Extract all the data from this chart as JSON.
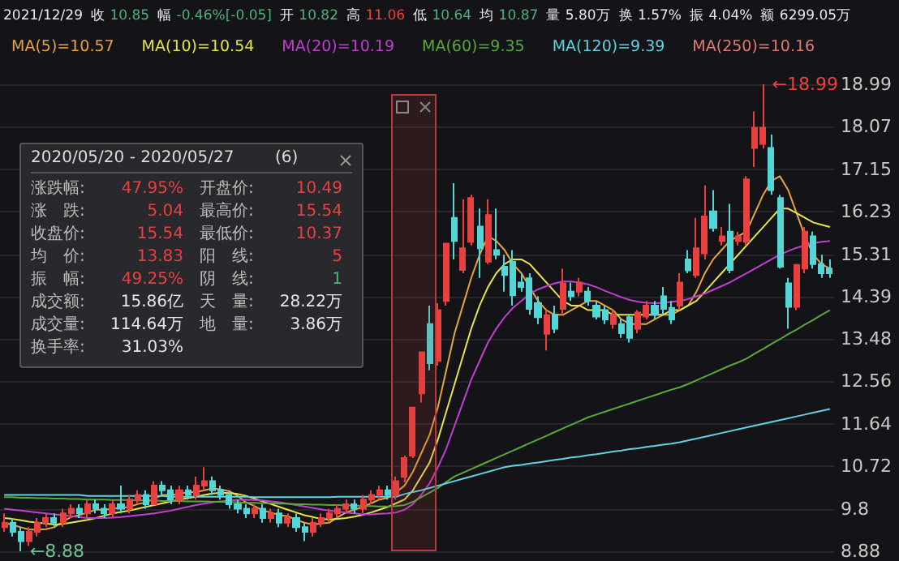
{
  "chart_data": {
    "type": "candlestick",
    "categories": [
      null,
      null,
      null,
      null,
      null,
      null,
      null,
      null,
      null,
      null,
      null,
      null,
      null,
      null,
      null,
      null,
      null,
      null,
      null,
      null,
      null,
      null,
      null,
      null,
      null,
      null,
      null,
      null,
      null,
      null,
      null,
      null,
      null,
      null,
      null,
      null,
      null,
      null,
      null,
      null,
      null,
      null,
      null,
      null,
      null,
      null,
      null,
      null,
      null,
      null,
      null,
      null,
      null,
      null,
      null,
      null,
      null,
      null,
      null,
      null,
      null,
      null,
      null,
      null,
      null,
      null,
      null,
      null,
      null,
      null,
      null,
      null,
      null,
      null,
      null,
      null,
      null,
      null,
      null,
      null,
      null,
      null,
      null,
      null,
      null,
      null,
      null,
      null,
      null,
      null,
      null,
      null,
      null,
      null,
      null,
      null,
      null,
      null,
      null,
      null
    ],
    "ohlc": [
      [
        9.4,
        9.7,
        9.3,
        9.5
      ],
      [
        9.5,
        9.6,
        9.2,
        9.3
      ],
      [
        9.3,
        9.4,
        8.88,
        9.1
      ],
      [
        9.1,
        9.4,
        9.0,
        9.3
      ],
      [
        9.3,
        9.6,
        9.2,
        9.5
      ],
      [
        9.5,
        9.7,
        9.4,
        9.6
      ],
      [
        9.6,
        9.7,
        9.4,
        9.5
      ],
      [
        9.5,
        9.8,
        9.4,
        9.7
      ],
      [
        9.7,
        9.9,
        9.6,
        9.8
      ],
      [
        9.8,
        9.9,
        9.6,
        9.7
      ],
      [
        9.7,
        10.0,
        9.6,
        9.9
      ],
      [
        9.9,
        10.0,
        9.7,
        9.8
      ],
      [
        9.8,
        9.9,
        9.6,
        9.7
      ],
      [
        9.7,
        10.0,
        9.6,
        9.9
      ],
      [
        9.9,
        10.3,
        9.7,
        9.8
      ],
      [
        9.8,
        10.1,
        9.7,
        10.0
      ],
      [
        10.0,
        10.2,
        9.9,
        10.1
      ],
      [
        10.1,
        10.2,
        9.8,
        9.9
      ],
      [
        9.9,
        10.4,
        9.9,
        10.3
      ],
      [
        10.3,
        10.4,
        10.1,
        10.2
      ],
      [
        10.2,
        10.3,
        9.9,
        10.0
      ],
      [
        10.0,
        10.3,
        9.9,
        10.2
      ],
      [
        10.2,
        10.3,
        10.0,
        10.1
      ],
      [
        10.1,
        10.5,
        10.0,
        10.3
      ],
      [
        10.3,
        10.7,
        10.2,
        10.4
      ],
      [
        10.4,
        10.5,
        10.1,
        10.2
      ],
      [
        10.2,
        10.3,
        10.0,
        10.1
      ],
      [
        10.1,
        10.2,
        9.8,
        9.9
      ],
      [
        9.9,
        10.0,
        9.7,
        9.8
      ],
      [
        9.8,
        9.9,
        9.6,
        9.7
      ],
      [
        9.7,
        9.9,
        9.6,
        9.8
      ],
      [
        9.8,
        9.9,
        9.5,
        9.6
      ],
      [
        9.6,
        9.8,
        9.5,
        9.7
      ],
      [
        9.7,
        9.8,
        9.4,
        9.5
      ],
      [
        9.5,
        9.7,
        9.4,
        9.6
      ],
      [
        9.6,
        9.7,
        9.3,
        9.4
      ],
      [
        9.4,
        9.5,
        9.1,
        9.3
      ],
      [
        9.3,
        9.6,
        9.2,
        9.5
      ],
      [
        9.5,
        9.7,
        9.4,
        9.6
      ],
      [
        9.6,
        9.8,
        9.5,
        9.7
      ],
      [
        9.7,
        9.9,
        9.6,
        9.8
      ],
      [
        9.8,
        10.0,
        9.7,
        9.9
      ],
      [
        9.9,
        10.0,
        9.7,
        9.8
      ],
      [
        9.8,
        10.1,
        9.7,
        10.0
      ],
      [
        10.0,
        10.2,
        9.9,
        10.1
      ],
      [
        10.1,
        10.3,
        10.0,
        10.2
      ],
      [
        10.2,
        10.3,
        10.0,
        10.1
      ],
      [
        10.1,
        10.5,
        10.0,
        10.4
      ],
      [
        10.49,
        10.95,
        10.37,
        10.9
      ],
      [
        10.95,
        11.99,
        10.9,
        11.99
      ],
      [
        12.3,
        13.19,
        12.1,
        13.19
      ],
      [
        13.8,
        14.2,
        12.8,
        12.95
      ],
      [
        13.0,
        14.25,
        12.9,
        14.1
      ],
      [
        14.3,
        15.54,
        14.2,
        15.54
      ],
      [
        16.1,
        16.85,
        15.2,
        15.6
      ],
      [
        14.97,
        16.5,
        14.9,
        15.44
      ],
      [
        15.58,
        16.6,
        15.5,
        16.53
      ],
      [
        15.91,
        16.3,
        14.8,
        15.44
      ],
      [
        15.15,
        16.5,
        15.1,
        16.16
      ],
      [
        15.4,
        16.3,
        15.2,
        15.3
      ],
      [
        15.04,
        15.3,
        14.5,
        14.86
      ],
      [
        15.15,
        15.4,
        14.2,
        14.42
      ],
      [
        14.7,
        14.9,
        14.5,
        14.6
      ],
      [
        14.79,
        14.9,
        14.0,
        14.13
      ],
      [
        14.25,
        14.4,
        13.8,
        13.95
      ],
      [
        13.59,
        14.1,
        13.23,
        13.99
      ],
      [
        14.0,
        14.2,
        13.6,
        13.7
      ],
      [
        14.13,
        15.0,
        14.0,
        14.68
      ],
      [
        14.5,
        14.7,
        14.3,
        14.4
      ],
      [
        14.5,
        14.8,
        14.4,
        14.7
      ],
      [
        14.5,
        14.6,
        14.2,
        14.3
      ],
      [
        14.2,
        14.3,
        13.9,
        13.96
      ],
      [
        14.1,
        14.2,
        13.8,
        13.9
      ],
      [
        13.8,
        14.1,
        13.7,
        14.0
      ],
      [
        13.8,
        13.9,
        13.5,
        13.6
      ],
      [
        13.95,
        14.0,
        13.4,
        13.5
      ],
      [
        13.7,
        14.1,
        13.6,
        14.05
      ],
      [
        13.96,
        14.3,
        13.9,
        14.2
      ],
      [
        14.2,
        14.3,
        13.9,
        14.0
      ],
      [
        14.4,
        14.6,
        14.0,
        14.13
      ],
      [
        14.15,
        14.3,
        13.8,
        13.9
      ],
      [
        14.2,
        14.9,
        14.1,
        14.7
      ],
      [
        15.2,
        15.4,
        14.9,
        14.96
      ],
      [
        14.86,
        16.1,
        14.8,
        15.44
      ],
      [
        15.33,
        16.8,
        15.2,
        16.13
      ],
      [
        16.24,
        16.7,
        15.8,
        15.88
      ],
      [
        15.6,
        15.9,
        15.5,
        15.7
      ],
      [
        15.8,
        16.4,
        14.9,
        14.97
      ],
      [
        15.6,
        15.8,
        15.5,
        15.7
      ],
      [
        15.58,
        17.0,
        15.5,
        16.93
      ],
      [
        17.61,
        18.4,
        17.2,
        18.05
      ],
      [
        17.7,
        18.99,
        17.6,
        18.05
      ],
      [
        17.61,
        17.9,
        16.6,
        16.7
      ],
      [
        16.53,
        16.6,
        15.0,
        15.04
      ],
      [
        14.68,
        14.8,
        13.7,
        14.17
      ],
      [
        14.17,
        15.1,
        14.1,
        15.08
      ],
      [
        15.0,
        15.9,
        14.9,
        15.8
      ],
      [
        15.7,
        15.8,
        15.0,
        15.1
      ],
      [
        15.1,
        15.3,
        14.8,
        14.9
      ],
      [
        15.0,
        15.2,
        14.8,
        14.9
      ]
    ],
    "series": [
      {
        "type": "line",
        "name": "MA(5)=10.57",
        "color": "#e8a33d",
        "values": [
          9.5,
          9.45,
          9.4,
          9.35,
          9.35,
          9.36,
          9.4,
          9.52,
          9.62,
          9.66,
          9.72,
          9.78,
          9.78,
          9.8,
          9.82,
          9.84,
          9.9,
          9.94,
          10.02,
          10.1,
          10.1,
          10.12,
          10.16,
          10.16,
          10.2,
          10.24,
          10.22,
          10.18,
          10.08,
          9.94,
          9.86,
          9.76,
          9.72,
          9.66,
          9.64,
          9.56,
          9.5,
          9.46,
          9.48,
          9.5,
          9.62,
          9.72,
          9.78,
          9.84,
          9.92,
          10.0,
          10.04,
          10.16,
          10.3,
          10.6,
          11.0,
          11.4,
          12.0,
          12.8,
          13.6,
          14.2,
          14.8,
          15.3,
          15.7,
          15.6,
          15.4,
          15.1,
          14.9,
          14.6,
          14.3,
          14.1,
          14.0,
          14.0,
          14.1,
          14.2,
          14.3,
          14.3,
          14.2,
          14.1,
          13.9,
          13.8,
          13.8,
          13.8,
          13.9,
          14.0,
          14.0,
          14.1,
          14.2,
          14.5,
          14.9,
          15.2,
          15.4,
          15.6,
          15.7,
          15.8,
          16.2,
          16.6,
          16.9,
          17.0,
          16.7,
          16.2,
          15.7,
          15.3,
          15.1,
          15.0
        ]
      },
      {
        "type": "line",
        "name": "MA(10)=10.54",
        "color": "#e6e34a",
        "values": [
          9.6,
          9.58,
          9.55,
          9.52,
          9.5,
          9.48,
          9.46,
          9.47,
          9.5,
          9.53,
          9.56,
          9.6,
          9.65,
          9.7,
          9.73,
          9.76,
          9.8,
          9.84,
          9.88,
          9.92,
          9.96,
          10.0,
          10.03,
          10.06,
          10.1,
          10.13,
          10.15,
          10.14,
          10.12,
          10.08,
          10.02,
          9.96,
          9.9,
          9.84,
          9.78,
          9.72,
          9.66,
          9.62,
          9.58,
          9.57,
          9.58,
          9.6,
          9.63,
          9.67,
          9.72,
          9.78,
          9.84,
          9.92,
          10.0,
          10.2,
          10.5,
          10.8,
          11.3,
          11.9,
          12.5,
          13.1,
          13.7,
          14.2,
          14.6,
          14.9,
          15.1,
          15.2,
          15.2,
          15.1,
          14.9,
          14.7,
          14.5,
          14.3,
          14.2,
          14.2,
          14.1,
          14.1,
          14.1,
          14.0,
          14.0,
          14.0,
          14.0,
          14.0,
          14.0,
          14.0,
          14.1,
          14.1,
          14.2,
          14.3,
          14.5,
          14.7,
          14.9,
          15.1,
          15.3,
          15.5,
          15.7,
          15.9,
          16.1,
          16.3,
          16.3,
          16.2,
          16.1,
          16.0,
          15.95,
          15.9
        ]
      },
      {
        "type": "line",
        "name": "MA(20)=10.19",
        "color": "#c03fd0",
        "values": [
          9.8,
          9.78,
          9.76,
          9.74,
          9.72,
          9.7,
          9.68,
          9.66,
          9.64,
          9.62,
          9.6,
          9.6,
          9.6,
          9.61,
          9.62,
          9.64,
          9.66,
          9.68,
          9.7,
          9.73,
          9.76,
          9.8,
          9.84,
          9.88,
          9.91,
          9.94,
          9.96,
          9.98,
          9.99,
          10.0,
          9.99,
          9.98,
          9.96,
          9.94,
          9.91,
          9.88,
          9.85,
          9.82,
          9.79,
          9.76,
          9.74,
          9.72,
          9.7,
          9.68,
          9.68,
          9.69,
          9.7,
          9.72,
          9.78,
          9.9,
          10.1,
          10.35,
          10.7,
          11.1,
          11.6,
          12.1,
          12.6,
          13.0,
          13.4,
          13.7,
          13.95,
          14.15,
          14.3,
          14.45,
          14.55,
          14.62,
          14.68,
          14.72,
          14.72,
          14.7,
          14.66,
          14.6,
          14.52,
          14.45,
          14.38,
          14.32,
          14.28,
          14.26,
          14.25,
          14.26,
          14.28,
          14.3,
          14.34,
          14.4,
          14.46,
          14.54,
          14.62,
          14.7,
          14.8,
          14.9,
          15.0,
          15.1,
          15.2,
          15.3,
          15.38,
          15.45,
          15.5,
          15.55,
          15.58,
          15.6
        ]
      },
      {
        "type": "line",
        "name": "MA(60)=9.35",
        "color": "#5aa83a",
        "values": [
          10.05,
          10.05,
          10.04,
          10.04,
          10.03,
          10.03,
          10.02,
          10.02,
          10.01,
          10.01,
          10.0,
          10.0,
          10.0,
          9.99,
          9.99,
          9.99,
          9.98,
          9.98,
          9.98,
          9.97,
          9.97,
          9.97,
          9.96,
          9.96,
          9.96,
          9.95,
          9.95,
          9.94,
          9.94,
          9.93,
          9.93,
          9.92,
          9.92,
          9.91,
          9.91,
          9.9,
          9.9,
          9.89,
          9.89,
          9.88,
          9.88,
          9.87,
          9.87,
          9.86,
          9.86,
          9.85,
          9.85,
          9.86,
          9.88,
          9.95,
          10.05,
          10.15,
          10.25,
          10.38,
          10.5,
          10.58,
          10.66,
          10.74,
          10.82,
          10.9,
          10.98,
          11.06,
          11.14,
          11.22,
          11.3,
          11.38,
          11.46,
          11.54,
          11.62,
          11.7,
          11.78,
          11.84,
          11.9,
          11.96,
          12.02,
          12.08,
          12.14,
          12.2,
          12.26,
          12.32,
          12.38,
          12.43,
          12.5,
          12.58,
          12.66,
          12.74,
          12.82,
          12.9,
          12.97,
          13.05,
          13.16,
          13.26,
          13.37,
          13.47,
          13.58,
          13.68,
          13.79,
          13.89,
          14.0,
          14.1
        ]
      },
      {
        "type": "line",
        "name": "MA(120)=9.39",
        "color": "#5fd3e0",
        "values": [
          10.1,
          10.1,
          10.1,
          10.1,
          10.1,
          10.1,
          10.1,
          10.1,
          10.1,
          10.1,
          10.08,
          10.08,
          10.08,
          10.08,
          10.08,
          10.08,
          10.08,
          10.08,
          10.08,
          10.08,
          10.06,
          10.06,
          10.06,
          10.06,
          10.06,
          10.06,
          10.06,
          10.06,
          10.06,
          10.06,
          10.05,
          10.05,
          10.05,
          10.05,
          10.05,
          10.05,
          10.05,
          10.05,
          10.05,
          10.05,
          10.06,
          10.06,
          10.06,
          10.06,
          10.06,
          10.06,
          10.06,
          10.06,
          10.12,
          10.16,
          10.2,
          10.25,
          10.3,
          10.35,
          10.4,
          10.45,
          10.5,
          10.55,
          10.6,
          10.65,
          10.7,
          10.73,
          10.75,
          10.78,
          10.8,
          10.83,
          10.86,
          10.88,
          10.91,
          10.93,
          10.96,
          10.98,
          11.01,
          11.04,
          11.06,
          11.09,
          11.11,
          11.14,
          11.16,
          11.19,
          11.21,
          11.24,
          11.28,
          11.32,
          11.36,
          11.4,
          11.44,
          11.48,
          11.52,
          11.56,
          11.6,
          11.64,
          11.68,
          11.72,
          11.76,
          11.8,
          11.84,
          11.88,
          11.92,
          11.96
        ]
      },
      {
        "type": "line",
        "name": "MA(250)=10.16",
        "color": "#e07a72",
        "values": [
          null,
          null,
          null,
          null,
          null,
          null,
          null,
          null,
          null,
          null,
          null,
          null,
          null,
          null,
          null,
          null,
          null,
          null,
          null,
          null,
          null,
          null,
          null,
          null,
          null,
          null,
          null,
          null,
          null,
          null,
          null,
          null,
          null,
          null,
          null,
          null,
          null,
          null,
          null,
          null,
          null,
          null,
          null,
          null,
          null,
          null,
          null,
          null,
          null,
          null,
          null,
          null,
          null,
          null,
          null,
          null,
          null,
          null,
          null,
          null,
          null,
          null,
          null,
          null,
          null,
          null,
          null,
          null,
          null,
          null,
          null,
          null,
          null,
          null,
          null,
          null,
          null,
          null,
          null,
          null,
          null,
          null,
          null,
          null,
          null,
          null,
          null,
          null,
          null,
          null,
          null,
          null,
          null,
          null,
          null,
          null,
          null,
          null,
          null,
          null
        ]
      }
    ],
    "ylim": [
      8.88,
      18.99
    ],
    "yticks": [
      8.88,
      9.8,
      10.72,
      11.64,
      12.56,
      13.48,
      14.39,
      15.31,
      16.23,
      17.15,
      18.07,
      18.99
    ],
    "tick_labels": "y",
    "grid": "y",
    "legend": "top left",
    "annotations": [
      "2021/12/29",
      "收 10.85",
      "幅 -0.46%[-0.05]",
      "开 10.82",
      "高 11.06",
      "低 10.64",
      "均 10.87",
      "量 5.80万",
      "换 1.57%",
      "振 4.04%",
      "额 6299.05万",
      "2020/05/20 - 2020/05/27",
      "(6)",
      "涨跌幅:",
      "47.95%",
      "开盘价:",
      "10.49",
      "涨　跌:",
      "5.04",
      "最高价:",
      "15.54",
      "收盘价:",
      "15.54",
      "最低价:",
      "10.37",
      "均　价:",
      "13.83",
      "阳　线:",
      "5",
      "振　幅:",
      "49.25%",
      "阴　线:",
      "1",
      "成交额:",
      "15.86亿",
      "天　量:",
      "28.22万",
      "成交量:",
      "114.64万",
      "地　量:",
      "3.86万",
      "换手率:",
      "31.03%",
      "←18.99",
      "←8.88"
    ]
  }
}
